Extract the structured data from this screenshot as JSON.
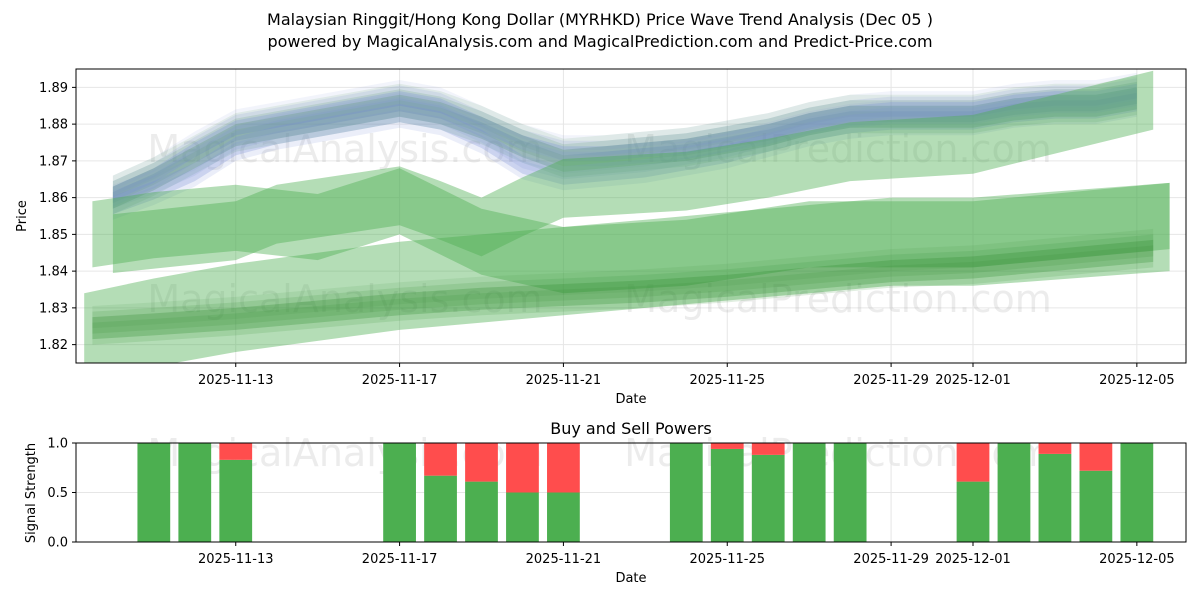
{
  "title_line1": "Malaysian Ringgit/Hong Kong Dollar (MYRHKD) Price Wave Trend Analysis (Dec 05 )",
  "title_line2": "powered by MagicalAnalysis.com and MagicalPrediction.com and Predict-Price.com",
  "watermarks": [
    "MagicalAnalysis.com",
    "MagicalPrediction.com"
  ],
  "colors": {
    "green_band": "#4caf50",
    "green_dark": "#2e8b2e",
    "blue_band": "#7b8fd6",
    "buy": "#4caf50",
    "sell": "#ff4d4d",
    "grid": "#e6e6e6"
  },
  "chart_data": [
    {
      "type": "area",
      "title": "",
      "xlabel": "Date",
      "ylabel": "Price",
      "ylim": [
        1.815,
        1.895
      ],
      "x_tick_labels": [
        "2025-11-13",
        "2025-11-17",
        "2025-11-21",
        "2025-11-25",
        "2025-11-29",
        "2025-12-01",
        "2025-12-05"
      ],
      "x_tick_days": [
        13,
        17,
        21,
        25,
        29,
        31,
        35
      ],
      "y_ticks": [
        1.82,
        1.83,
        1.84,
        1.85,
        1.86,
        1.87,
        1.88,
        1.89
      ],
      "xlim_days": [
        9.1,
        36.2
      ],
      "grid": true,
      "price_bands": [
        {
          "name": "wave-1",
          "x": [
            10,
            11,
            12,
            13,
            14,
            15,
            16,
            17,
            18,
            19,
            20,
            21,
            22,
            23,
            24,
            25,
            26,
            27,
            28,
            29,
            30,
            31,
            32,
            33,
            34,
            35
          ],
          "center": [
            1.86,
            1.865,
            1.871,
            1.877,
            1.879,
            1.881,
            1.883,
            1.885,
            1.883,
            1.879,
            1.874,
            1.87,
            1.871,
            1.872,
            1.873,
            1.875,
            1.877,
            1.88,
            1.882,
            1.882,
            1.882,
            1.882,
            1.884,
            1.885,
            1.885,
            1.887
          ],
          "width": 0.006,
          "color": "green_dark"
        },
        {
          "name": "wave-2",
          "x": [
            10,
            11,
            12,
            13,
            14,
            15,
            16,
            17,
            18,
            19,
            20,
            21,
            22,
            23,
            24,
            25,
            26,
            27,
            28,
            29,
            30,
            31,
            32,
            33,
            34,
            35
          ],
          "center": [
            1.861,
            1.866,
            1.873,
            1.879,
            1.881,
            1.883,
            1.885,
            1.887,
            1.885,
            1.88,
            1.875,
            1.872,
            1.872,
            1.873,
            1.874,
            1.876,
            1.878,
            1.881,
            1.883,
            1.884,
            1.884,
            1.884,
            1.886,
            1.887,
            1.887,
            1.889
          ],
          "width": 0.004,
          "color": "blue_band"
        },
        {
          "name": "wave-3",
          "x": [
            10,
            11,
            12,
            13,
            14,
            15,
            16,
            17,
            18,
            19,
            20,
            21,
            22,
            23,
            24,
            25,
            26,
            27,
            28,
            29,
            30,
            31,
            32,
            33,
            34,
            35
          ],
          "center": [
            1.858,
            1.862,
            1.867,
            1.874,
            1.877,
            1.879,
            1.881,
            1.883,
            1.881,
            1.876,
            1.869,
            1.866,
            1.867,
            1.868,
            1.87,
            1.872,
            1.875,
            1.878,
            1.88,
            1.881,
            1.881,
            1.881,
            1.883,
            1.884,
            1.884,
            1.886
          ],
          "width": 0.005,
          "color": "blue_band"
        },
        {
          "name": "wave-4",
          "x": [
            10,
            13,
            14,
            17,
            18,
            19,
            20,
            21,
            24,
            26,
            28,
            31,
            35.4
          ],
          "center": [
            1.8475,
            1.851,
            1.8555,
            1.8605,
            1.8565,
            1.852,
            1.8575,
            1.8625,
            1.8645,
            1.868,
            1.8725,
            1.8745,
            1.8865
          ],
          "width": 0.016,
          "color": "green_band"
        },
        {
          "name": "wave-5",
          "x": [
            9.5,
            11,
            13,
            15,
            17,
            19,
            21,
            24,
            27,
            29,
            31,
            35.8
          ],
          "center": [
            1.85,
            1.8525,
            1.8545,
            1.852,
            1.859,
            1.848,
            1.843,
            1.845,
            1.85,
            1.85,
            1.85,
            1.855
          ],
          "width": 0.018,
          "color": "green_band"
        },
        {
          "name": "wave-6",
          "x": [
            9.3,
            11,
            13,
            15,
            17,
            19,
            21,
            23,
            25,
            27,
            29,
            31,
            35.8
          ],
          "center": [
            1.822,
            1.826,
            1.83,
            1.833,
            1.836,
            1.838,
            1.84,
            1.842,
            1.844,
            1.846,
            1.848,
            1.848,
            1.852
          ],
          "width": 0.024,
          "color": "green_band"
        },
        {
          "name": "wave-7",
          "x": [
            9.5,
            11,
            13,
            15,
            17,
            19,
            21,
            23,
            25,
            27,
            29,
            31,
            35.4
          ],
          "center": [
            1.8245,
            1.8255,
            1.827,
            1.829,
            1.831,
            1.8325,
            1.8335,
            1.8345,
            1.836,
            1.838,
            1.84,
            1.841,
            1.8455
          ],
          "width": 0.006,
          "color": "green_dark"
        }
      ]
    },
    {
      "type": "bar",
      "title": "Buy and Sell Powers",
      "xlabel": "Date",
      "ylabel": "Signal Strength",
      "ylim": [
        0,
        1.0
      ],
      "y_ticks": [
        0.0,
        0.5,
        1.0
      ],
      "y_tick_labels": [
        "0.0",
        "0.5",
        "1.0"
      ],
      "x_tick_labels": [
        "2025-11-13",
        "2025-11-17",
        "2025-11-21",
        "2025-11-25",
        "2025-11-29",
        "2025-12-01",
        "2025-12-05"
      ],
      "x_tick_days": [
        13,
        17,
        21,
        25,
        29,
        31,
        35
      ],
      "xlim_days": [
        9.1,
        36.2
      ],
      "days": [
        11,
        12,
        13,
        17,
        18,
        19,
        20,
        21,
        24,
        25,
        26,
        27,
        28,
        31,
        32,
        33,
        34,
        35
      ],
      "series": [
        {
          "name": "Buy",
          "values": [
            1.0,
            1.0,
            0.83,
            1.0,
            0.67,
            0.61,
            0.5,
            0.5,
            1.0,
            0.94,
            0.88,
            1.0,
            1.0,
            0.61,
            1.0,
            0.89,
            0.72,
            1.0
          ]
        },
        {
          "name": "Sell",
          "values": [
            0.0,
            0.0,
            0.17,
            0.0,
            0.33,
            0.39,
            0.5,
            0.5,
            0.0,
            0.06,
            0.12,
            0.0,
            0.0,
            0.39,
            0.0,
            0.11,
            0.28,
            0.0
          ]
        }
      ]
    }
  ]
}
